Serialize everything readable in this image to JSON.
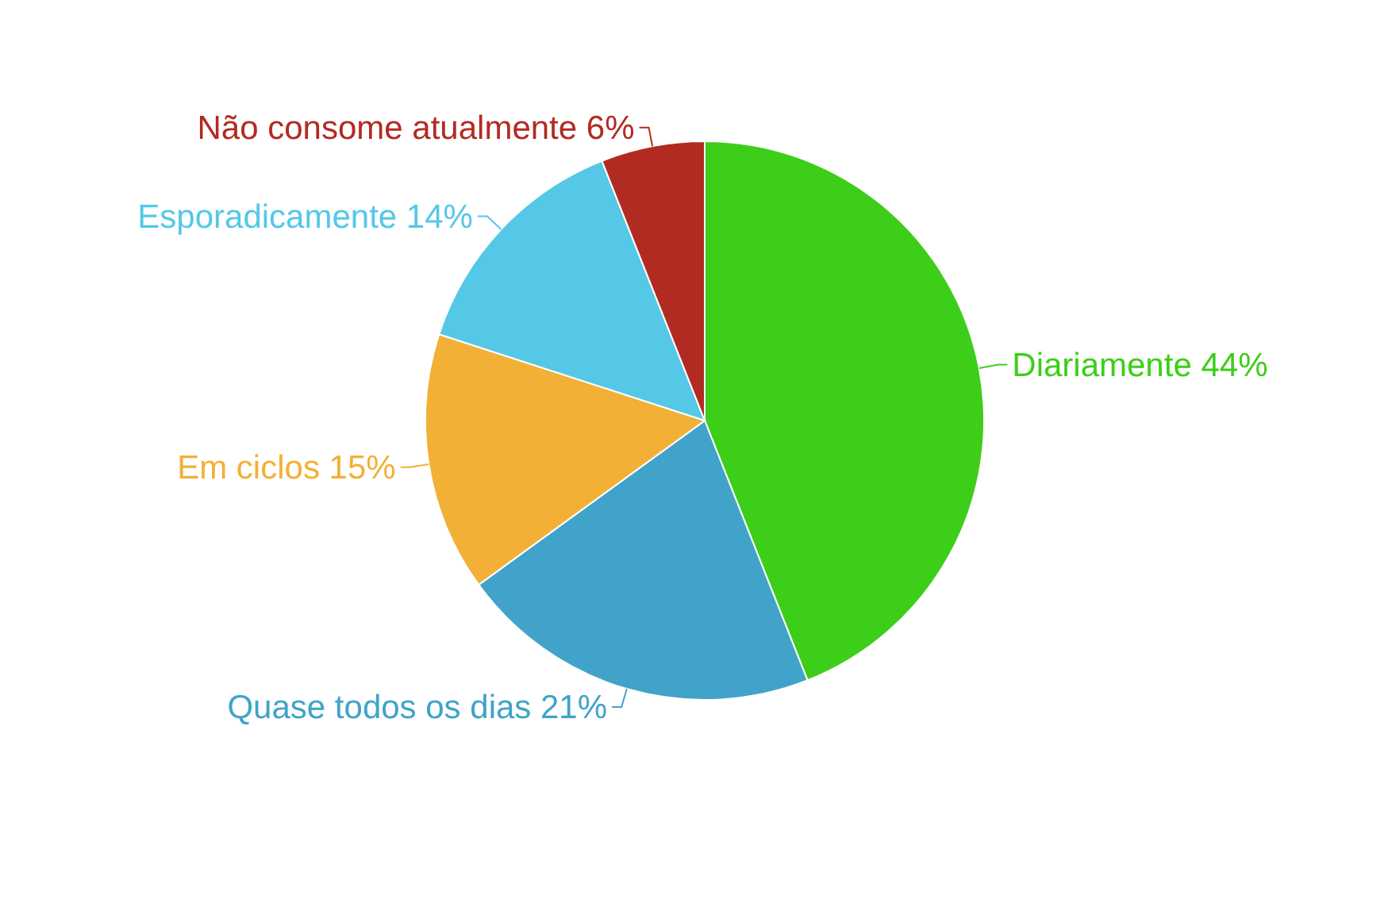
{
  "chart_data": {
    "type": "pie",
    "categories": [
      "Diariamente",
      "Quase todos os dias",
      "Em ciclos",
      "Esporadicamente",
      "Não consome atualmente"
    ],
    "values": [
      44,
      21,
      15,
      14,
      6
    ],
    "value_labels": [
      "44%",
      "21%",
      "15%",
      "14%",
      "6%"
    ],
    "colors": [
      "#3dce19",
      "#41a3c9",
      "#f2b036",
      "#55c8e8",
      "#b22b22"
    ],
    "legend": false
  }
}
